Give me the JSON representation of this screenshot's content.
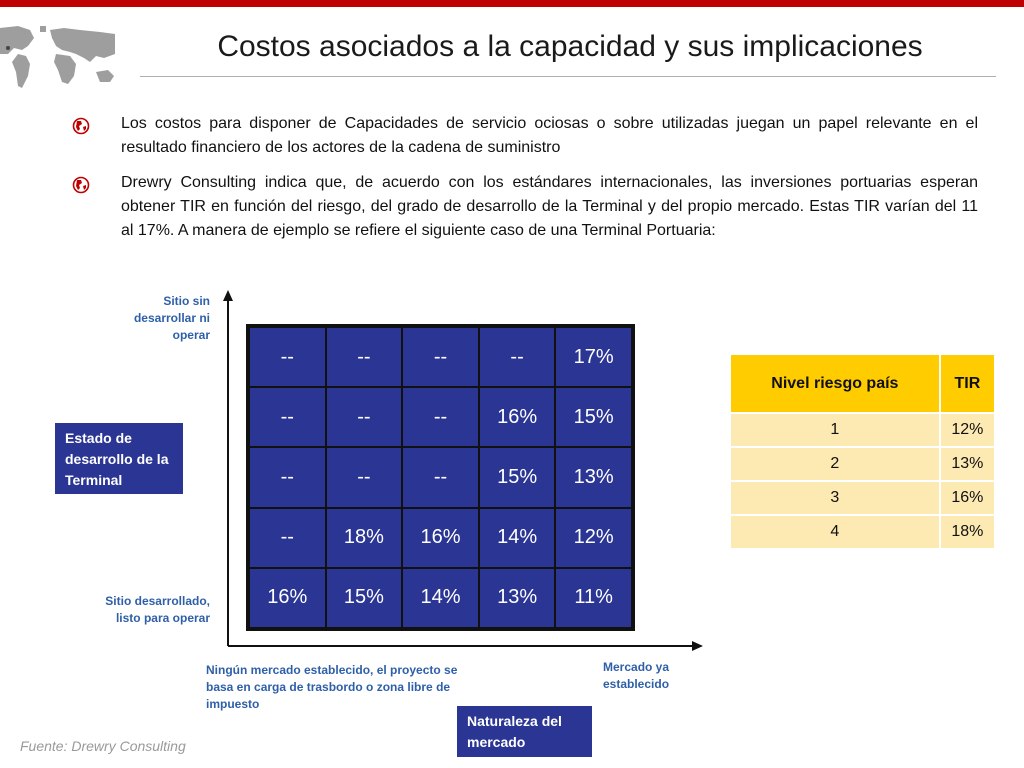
{
  "title": "Costos asociados a la capacidad y sus implicaciones",
  "paragraphs": [
    "Los costos para disponer de Capacidades de servicio ociosas o sobre utilizadas juegan un papel relevante en el resultado financiero de los actores de la cadena de suministro",
    "Drewry Consulting indica que, de acuerdo con los estándares internacionales, las inversiones portuarias esperan obtener TIR en función del riesgo, del grado de desarrollo de la Terminal y del propio mercado. Estas TIR varían del 11 al 17%. A  manera de ejemplo se refiere el siguiente caso de una Terminal Portuaria:"
  ],
  "icons": {
    "bullet": "globe-icon",
    "header_map": "world-map-icon"
  },
  "diagram": {
    "y_top_label": "Sitio sin desarrollar ni operar",
    "y_bottom_label": "Sitio desarrollado, listo para operar",
    "y_axis_box": "Estado de desarrollo de la Terminal",
    "x_left_label": "Ningún mercado establecido, el proyecto se basa en carga de trasbordo o zona libre de impuesto",
    "x_right_label": "Mercado ya establecido",
    "x_axis_box": "Naturaleza del mercado",
    "matrix": [
      [
        "--",
        "--",
        "--",
        "--",
        "17%"
      ],
      [
        "--",
        "--",
        "--",
        "16%",
        "15%"
      ],
      [
        "--",
        "--",
        "--",
        "15%",
        "13%"
      ],
      [
        "--",
        "18%",
        "16%",
        "14%",
        "12%"
      ],
      [
        "16%",
        "15%",
        "14%",
        "13%",
        "11%"
      ]
    ]
  },
  "risk_table": {
    "headers": [
      "Nivel riesgo país",
      "TIR"
    ],
    "rows": [
      [
        "1",
        "12%"
      ],
      [
        "2",
        "13%"
      ],
      [
        "3",
        "16%"
      ],
      [
        "4",
        "18%"
      ]
    ]
  },
  "source": "Fuente: Drewry Consulting",
  "colors": {
    "accent_bar": "#c00000",
    "matrix_fill": "#2b3593",
    "table_header": "#ffcc00",
    "table_row": "#fde9b2",
    "axis_text": "#2e5fa8"
  }
}
